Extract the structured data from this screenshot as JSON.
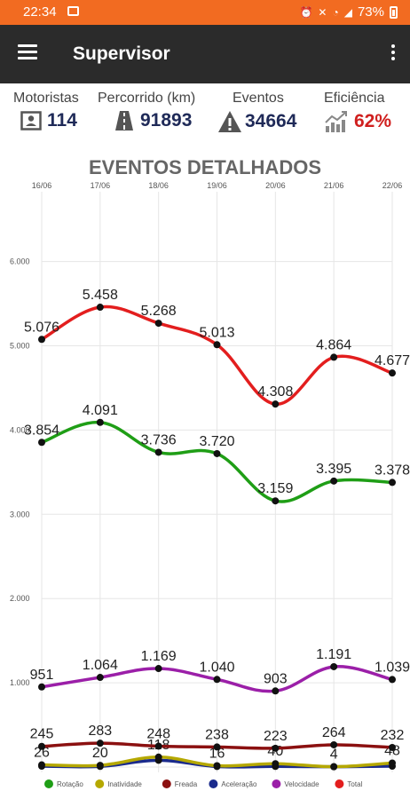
{
  "status_bar": {
    "time": "22:34",
    "battery": "73%",
    "icons": [
      "image-icon",
      "alarm-icon",
      "mute-icon",
      "wifi-icon",
      "signal-icon",
      "battery-icon"
    ]
  },
  "app_bar": {
    "title": "Supervisor",
    "menu_icon": "hamburger-menu-icon",
    "more_icon": "more-vert-icon"
  },
  "stats": {
    "motoristas": {
      "label": "Motoristas",
      "value": "114",
      "icon": "person-badge-icon"
    },
    "percorrido": {
      "label": "Percorrido (km)",
      "value": "91893",
      "icon": "road-icon"
    },
    "eventos": {
      "label": "Eventos",
      "value": "34664",
      "icon": "warning-icon"
    },
    "eficiencia": {
      "label": "Eficiência",
      "value": "62%",
      "icon": "chart-growth-icon",
      "value_color": "#d0201f"
    }
  },
  "chart_data": {
    "type": "line",
    "title": "EVENTOS DETALHADOS",
    "categories": [
      "16/06",
      "17/06",
      "18/06",
      "19/06",
      "20/06",
      "21/06",
      "22/06"
    ],
    "y_ticks": [
      "1.000",
      "2.000",
      "3.000",
      "4.000",
      "5.000",
      "6.000"
    ],
    "ylim": [
      0,
      6800
    ],
    "grid": true,
    "legend_position": "bottom",
    "series": [
      {
        "name": "Total",
        "color": "#e31e1e",
        "values": [
          5076,
          5458,
          5268,
          5013,
          4308,
          4864,
          4677
        ],
        "labels": [
          "5.076",
          "5.458",
          "5.268",
          "5.013",
          "4.308",
          "4.864",
          "4.677"
        ]
      },
      {
        "name": "Rotação",
        "color": "#1f9e16",
        "values": [
          3854,
          4091,
          3736,
          3720,
          3159,
          3395,
          3378
        ],
        "labels": [
          "3.854",
          "4.091",
          "3.736",
          "3.720",
          "3.159",
          "3.395",
          "3.378"
        ]
      },
      {
        "name": "Velocidade",
        "color": "#9b1fa8",
        "values": [
          951,
          1064,
          1169,
          1040,
          903,
          1191,
          1039
        ],
        "labels": [
          "951",
          "1.064",
          "1.169",
          "1.040",
          "903",
          "1.191",
          "1.039"
        ]
      },
      {
        "name": "Freada",
        "color": "#8b1010",
        "values": [
          245,
          283,
          248,
          238,
          223,
          264,
          232
        ],
        "labels": [
          "245",
          "283",
          "248",
          "238",
          "223",
          "264",
          "232"
        ]
      },
      {
        "name": "Inatividade",
        "color": "#b5a800",
        "values": [
          26,
          20,
          118,
          16,
          40,
          4,
          48
        ],
        "labels": [
          "26",
          "20",
          "118",
          "16",
          "40",
          "4",
          "48"
        ]
      },
      {
        "name": "Aceleração",
        "color": "#1a2a8c",
        "values": [
          10,
          8,
          80,
          6,
          8,
          4,
          10
        ],
        "labels": []
      }
    ],
    "legend": [
      "Rotação",
      "Inatividade",
      "Freada",
      "Aceleração",
      "Velocidade",
      "Total"
    ]
  }
}
